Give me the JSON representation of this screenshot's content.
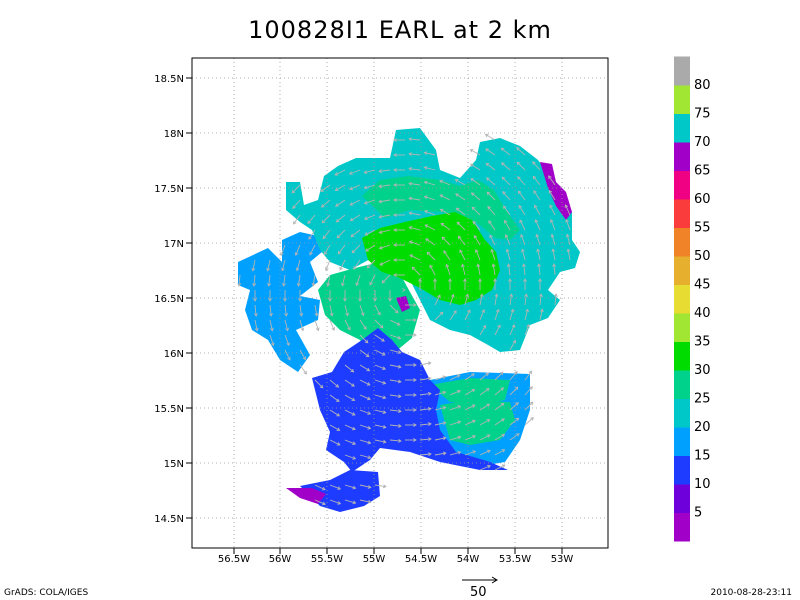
{
  "title": "100828I1 EARL at 2 km",
  "credit": "GrADS: COLA/IGES",
  "timestamp": "2010-08-28-23:11",
  "reference_vector_label": "50",
  "axes": {
    "lat_ticks": [
      "14.5N",
      "15N",
      "15.5N",
      "16N",
      "16.5N",
      "17N",
      "17.5N",
      "18N",
      "18.5N"
    ],
    "lon_ticks": [
      "56.5W",
      "56W",
      "55.5W",
      "55W",
      "54.5W",
      "54W",
      "53.5W",
      "53W"
    ]
  },
  "colorbar": {
    "labels": [
      "5",
      "10",
      "15",
      "20",
      "25",
      "30",
      "35",
      "40",
      "45",
      "50",
      "55",
      "60",
      "65",
      "70",
      "75",
      "80"
    ],
    "colors": [
      "#a000c8",
      "#6e00dc",
      "#1e3cff",
      "#00a0ff",
      "#00c8c8",
      "#00d28c",
      "#00dc00",
      "#a0e632",
      "#e6dc32",
      "#e6af2d",
      "#f08228",
      "#fa3c3c",
      "#f00082",
      "#a000c8",
      "#00c8c8",
      "#a0e632",
      "#aaaaaa"
    ]
  },
  "map_regions": [
    {
      "name": "blue-low-region",
      "color": "#1e3cff"
    },
    {
      "name": "light-blue-region",
      "color": "#00a0ff"
    },
    {
      "name": "cyan-region",
      "color": "#00c8c8"
    },
    {
      "name": "teal-region",
      "color": "#00d28c"
    },
    {
      "name": "green-core-region",
      "color": "#00dc00"
    },
    {
      "name": "purple-region",
      "color": "#a000c8"
    }
  ]
}
